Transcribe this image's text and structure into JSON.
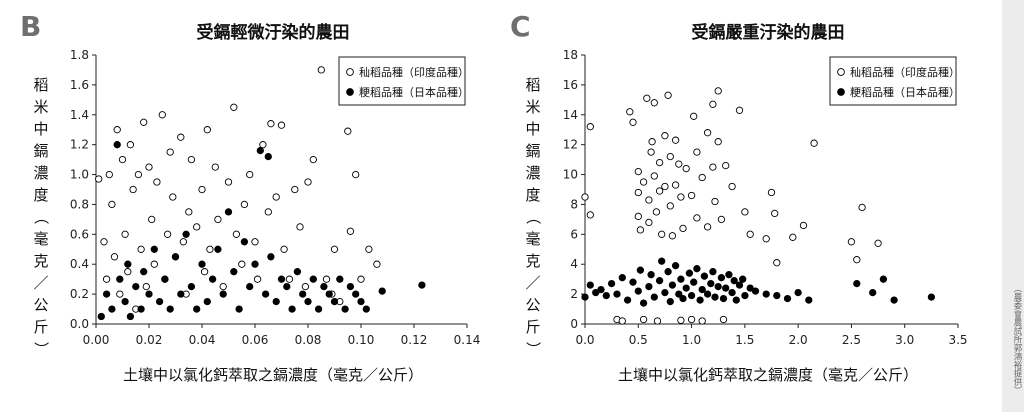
{
  "panels": [
    {
      "letter": "B",
      "title": "受鎘輕微汙染的農田",
      "xlabel": "土壤中以氯化鈣萃取之鎘濃度（毫克／公斤）",
      "ylabel": "稻米中鎘濃度（毫克／公斤）"
    },
    {
      "letter": "C",
      "title": "受鎘嚴重汙染的農田",
      "xlabel": "土壤中以氯化鈣萃取之鎘濃度（毫克／公斤）",
      "ylabel": "稻米中鎘濃度（毫克／公斤）"
    }
  ],
  "credit": "（農委會農試所郭鴻裕提供）",
  "chart_data": [
    {
      "type": "scatter",
      "title": "受鎘輕微汙染的農田",
      "xlabel": "土壤中以氯化鈣萃取之鎘濃度（毫克／公斤）",
      "ylabel": "稻米中鎘濃度（毫克／公斤）",
      "xlim": [
        0,
        0.14
      ],
      "ylim": [
        0,
        1.8
      ],
      "xticks": [
        "0.00",
        "0.02",
        "0.04",
        "0.06",
        "0.08",
        "0.10",
        "0.12",
        "0.14"
      ],
      "yticks": [
        "0.0",
        "0.2",
        "0.4",
        "0.6",
        "0.8",
        "1.0",
        "1.2",
        "1.4",
        "1.6",
        "1.8"
      ],
      "legend_position": "top-right",
      "series": [
        {
          "name": "秈稻品種（印度品種）",
          "marker": "open-circle",
          "points": [
            [
              0.001,
              0.97
            ],
            [
              0.003,
              0.55
            ],
            [
              0.004,
              0.3
            ],
            [
              0.005,
              1.0
            ],
            [
              0.006,
              0.8
            ],
            [
              0.007,
              0.45
            ],
            [
              0.008,
              1.3
            ],
            [
              0.009,
              0.2
            ],
            [
              0.01,
              1.1
            ],
            [
              0.011,
              0.6
            ],
            [
              0.012,
              0.35
            ],
            [
              0.013,
              1.2
            ],
            [
              0.014,
              0.9
            ],
            [
              0.015,
              0.1
            ],
            [
              0.016,
              1.0
            ],
            [
              0.017,
              0.5
            ],
            [
              0.018,
              1.35
            ],
            [
              0.019,
              0.25
            ],
            [
              0.02,
              1.05
            ],
            [
              0.021,
              0.7
            ],
            [
              0.022,
              0.4
            ],
            [
              0.023,
              0.95
            ],
            [
              0.025,
              1.4
            ],
            [
              0.026,
              0.3
            ],
            [
              0.027,
              0.6
            ],
            [
              0.028,
              1.15
            ],
            [
              0.029,
              0.85
            ],
            [
              0.03,
              0.45
            ],
            [
              0.032,
              1.25
            ],
            [
              0.033,
              0.55
            ],
            [
              0.034,
              0.2
            ],
            [
              0.035,
              0.75
            ],
            [
              0.036,
              1.1
            ],
            [
              0.038,
              0.65
            ],
            [
              0.04,
              0.9
            ],
            [
              0.041,
              0.35
            ],
            [
              0.042,
              1.3
            ],
            [
              0.043,
              0.5
            ],
            [
              0.045,
              1.05
            ],
            [
              0.046,
              0.7
            ],
            [
              0.048,
              0.25
            ],
            [
              0.05,
              0.95
            ],
            [
              0.052,
              1.45
            ],
            [
              0.053,
              0.6
            ],
            [
              0.055,
              0.4
            ],
            [
              0.056,
              0.8
            ],
            [
              0.058,
              1.0
            ],
            [
              0.06,
              0.55
            ],
            [
              0.061,
              0.3
            ],
            [
              0.063,
              1.2
            ],
            [
              0.065,
              0.75
            ],
            [
              0.066,
              1.34
            ],
            [
              0.068,
              0.85
            ],
            [
              0.07,
              1.33
            ],
            [
              0.071,
              0.5
            ],
            [
              0.073,
              0.3
            ],
            [
              0.075,
              0.9
            ],
            [
              0.077,
              0.65
            ],
            [
              0.079,
              0.25
            ],
            [
              0.08,
              0.95
            ],
            [
              0.082,
              1.1
            ],
            [
              0.085,
              1.7
            ],
            [
              0.087,
              0.3
            ],
            [
              0.089,
              0.2
            ],
            [
              0.09,
              0.5
            ],
            [
              0.092,
              0.15
            ],
            [
              0.095,
              1.29
            ],
            [
              0.096,
              0.62
            ],
            [
              0.098,
              1.0
            ],
            [
              0.1,
              0.3
            ],
            [
              0.103,
              0.5
            ],
            [
              0.106,
              0.4
            ]
          ]
        },
        {
          "name": "粳稻品種（日本品種）",
          "marker": "filled-circle",
          "points": [
            [
              0.002,
              0.05
            ],
            [
              0.004,
              0.2
            ],
            [
              0.006,
              0.1
            ],
            [
              0.008,
              1.2
            ],
            [
              0.009,
              0.3
            ],
            [
              0.011,
              0.15
            ],
            [
              0.012,
              0.4
            ],
            [
              0.013,
              0.05
            ],
            [
              0.015,
              0.25
            ],
            [
              0.017,
              0.1
            ],
            [
              0.018,
              0.35
            ],
            [
              0.02,
              0.2
            ],
            [
              0.022,
              0.5
            ],
            [
              0.024,
              0.15
            ],
            [
              0.026,
              0.3
            ],
            [
              0.028,
              0.1
            ],
            [
              0.03,
              0.45
            ],
            [
              0.032,
              0.2
            ],
            [
              0.034,
              0.6
            ],
            [
              0.036,
              0.25
            ],
            [
              0.038,
              0.1
            ],
            [
              0.04,
              0.4
            ],
            [
              0.042,
              0.15
            ],
            [
              0.044,
              0.3
            ],
            [
              0.046,
              0.5
            ],
            [
              0.048,
              0.2
            ],
            [
              0.05,
              0.75
            ],
            [
              0.052,
              0.35
            ],
            [
              0.054,
              0.1
            ],
            [
              0.056,
              0.55
            ],
            [
              0.058,
              0.25
            ],
            [
              0.06,
              0.4
            ],
            [
              0.062,
              1.16
            ],
            [
              0.064,
              0.2
            ],
            [
              0.065,
              1.12
            ],
            [
              0.066,
              0.45
            ],
            [
              0.068,
              0.15
            ],
            [
              0.07,
              0.3
            ],
            [
              0.072,
              0.25
            ],
            [
              0.074,
              0.1
            ],
            [
              0.076,
              0.35
            ],
            [
              0.078,
              0.2
            ],
            [
              0.08,
              0.15
            ],
            [
              0.082,
              0.3
            ],
            [
              0.084,
              0.1
            ],
            [
              0.086,
              0.25
            ],
            [
              0.088,
              0.2
            ],
            [
              0.09,
              0.15
            ],
            [
              0.092,
              0.3
            ],
            [
              0.094,
              0.1
            ],
            [
              0.096,
              0.25
            ],
            [
              0.098,
              0.2
            ],
            [
              0.1,
              0.15
            ],
            [
              0.102,
              0.1
            ],
            [
              0.108,
              0.22
            ],
            [
              0.123,
              0.26
            ]
          ]
        }
      ]
    },
    {
      "type": "scatter",
      "title": "受鎘嚴重汙染的農田",
      "xlabel": "土壤中以氯化鈣萃取之鎘濃度（毫克／公斤）",
      "ylabel": "稻米中鎘濃度（毫克／公斤）",
      "xlim": [
        0,
        3.5
      ],
      "ylim": [
        0,
        18
      ],
      "xticks": [
        "0.0",
        "0.5",
        "1.0",
        "1.5",
        "2.0",
        "2.5",
        "3.0",
        "3.5"
      ],
      "yticks": [
        "0",
        "2",
        "4",
        "6",
        "8",
        "10",
        "12",
        "14",
        "16",
        "18"
      ],
      "legend_position": "top-right",
      "series": [
        {
          "name": "秈稻品種（印度品種）",
          "marker": "open-circle",
          "points": [
            [
              0.0,
              8.5
            ],
            [
              0.05,
              13.2
            ],
            [
              0.05,
              7.3
            ],
            [
              0.3,
              0.3
            ],
            [
              0.35,
              0.2
            ],
            [
              0.42,
              14.2
            ],
            [
              0.45,
              13.5
            ],
            [
              0.5,
              10.2
            ],
            [
              0.5,
              8.8
            ],
            [
              0.5,
              7.2
            ],
            [
              0.52,
              6.3
            ],
            [
              0.55,
              9.5
            ],
            [
              0.55,
              0.3
            ],
            [
              0.58,
              15.1
            ],
            [
              0.6,
              8.3
            ],
            [
              0.6,
              6.8
            ],
            [
              0.62,
              11.5
            ],
            [
              0.63,
              12.2
            ],
            [
              0.65,
              14.8
            ],
            [
              0.65,
              9.9
            ],
            [
              0.67,
              7.5
            ],
            [
              0.68,
              0.2
            ],
            [
              0.7,
              10.8
            ],
            [
              0.7,
              8.9
            ],
            [
              0.72,
              6.0
            ],
            [
              0.75,
              12.6
            ],
            [
              0.75,
              9.2
            ],
            [
              0.78,
              15.3
            ],
            [
              0.8,
              11.2
            ],
            [
              0.8,
              7.9
            ],
            [
              0.82,
              5.9
            ],
            [
              0.85,
              12.3
            ],
            [
              0.85,
              9.3
            ],
            [
              0.88,
              10.7
            ],
            [
              0.9,
              8.5
            ],
            [
              0.9,
              0.25
            ],
            [
              0.92,
              6.4
            ],
            [
              0.95,
              10.4
            ],
            [
              1.0,
              8.6
            ],
            [
              1.0,
              0.3
            ],
            [
              1.02,
              13.9
            ],
            [
              1.05,
              11.5
            ],
            [
              1.05,
              7.1
            ],
            [
              1.1,
              9.8
            ],
            [
              1.1,
              0.2
            ],
            [
              1.15,
              12.8
            ],
            [
              1.15,
              6.5
            ],
            [
              1.2,
              14.7
            ],
            [
              1.2,
              10.5
            ],
            [
              1.22,
              8.2
            ],
            [
              1.25,
              15.6
            ],
            [
              1.25,
              12.2
            ],
            [
              1.28,
              7.0
            ],
            [
              1.3,
              0.3
            ],
            [
              1.32,
              10.6
            ],
            [
              1.38,
              9.2
            ],
            [
              1.45,
              14.3
            ],
            [
              1.5,
              7.5
            ],
            [
              1.55,
              6.0
            ],
            [
              1.7,
              5.7
            ],
            [
              1.75,
              8.8
            ],
            [
              1.78,
              7.4
            ],
            [
              1.8,
              4.1
            ],
            [
              1.95,
              5.8
            ],
            [
              2.05,
              6.6
            ],
            [
              2.15,
              12.1
            ],
            [
              2.5,
              5.5
            ],
            [
              2.55,
              4.3
            ],
            [
              2.6,
              7.8
            ],
            [
              2.75,
              5.4
            ]
          ]
        },
        {
          "name": "粳稻品種（日本品種）",
          "marker": "filled-circle",
          "points": [
            [
              0.0,
              1.8
            ],
            [
              0.05,
              2.6
            ],
            [
              0.1,
              2.1
            ],
            [
              0.15,
              2.3
            ],
            [
              0.2,
              1.9
            ],
            [
              0.25,
              2.7
            ],
            [
              0.3,
              2.0
            ],
            [
              0.35,
              3.1
            ],
            [
              0.4,
              1.6
            ],
            [
              0.45,
              2.8
            ],
            [
              0.5,
              2.2
            ],
            [
              0.52,
              3.6
            ],
            [
              0.55,
              1.4
            ],
            [
              0.6,
              2.5
            ],
            [
              0.62,
              3.3
            ],
            [
              0.65,
              1.8
            ],
            [
              0.7,
              2.9
            ],
            [
              0.72,
              4.2
            ],
            [
              0.75,
              2.1
            ],
            [
              0.78,
              3.5
            ],
            [
              0.8,
              1.5
            ],
            [
              0.82,
              2.6
            ],
            [
              0.85,
              3.9
            ],
            [
              0.88,
              2.0
            ],
            [
              0.9,
              3.0
            ],
            [
              0.92,
              1.7
            ],
            [
              0.95,
              2.4
            ],
            [
              0.98,
              3.4
            ],
            [
              1.0,
              1.9
            ],
            [
              1.02,
              2.8
            ],
            [
              1.05,
              3.7
            ],
            [
              1.08,
              1.6
            ],
            [
              1.1,
              2.3
            ],
            [
              1.12,
              3.2
            ],
            [
              1.15,
              2.0
            ],
            [
              1.18,
              2.7
            ],
            [
              1.2,
              3.5
            ],
            [
              1.22,
              1.8
            ],
            [
              1.25,
              2.5
            ],
            [
              1.28,
              3.1
            ],
            [
              1.3,
              1.7
            ],
            [
              1.32,
              2.4
            ],
            [
              1.35,
              3.3
            ],
            [
              1.38,
              2.1
            ],
            [
              1.4,
              2.9
            ],
            [
              1.42,
              1.6
            ],
            [
              1.45,
              2.6
            ],
            [
              1.48,
              3.0
            ],
            [
              1.5,
              1.9
            ],
            [
              1.55,
              2.4
            ],
            [
              1.6,
              2.2
            ],
            [
              1.7,
              2.0
            ],
            [
              1.8,
              1.9
            ],
            [
              1.9,
              1.7
            ],
            [
              2.0,
              2.1
            ],
            [
              2.1,
              1.6
            ],
            [
              2.55,
              2.7
            ],
            [
              2.7,
              2.1
            ],
            [
              2.8,
              3.0
            ],
            [
              2.9,
              1.6
            ],
            [
              3.25,
              1.8
            ]
          ]
        }
      ]
    }
  ]
}
